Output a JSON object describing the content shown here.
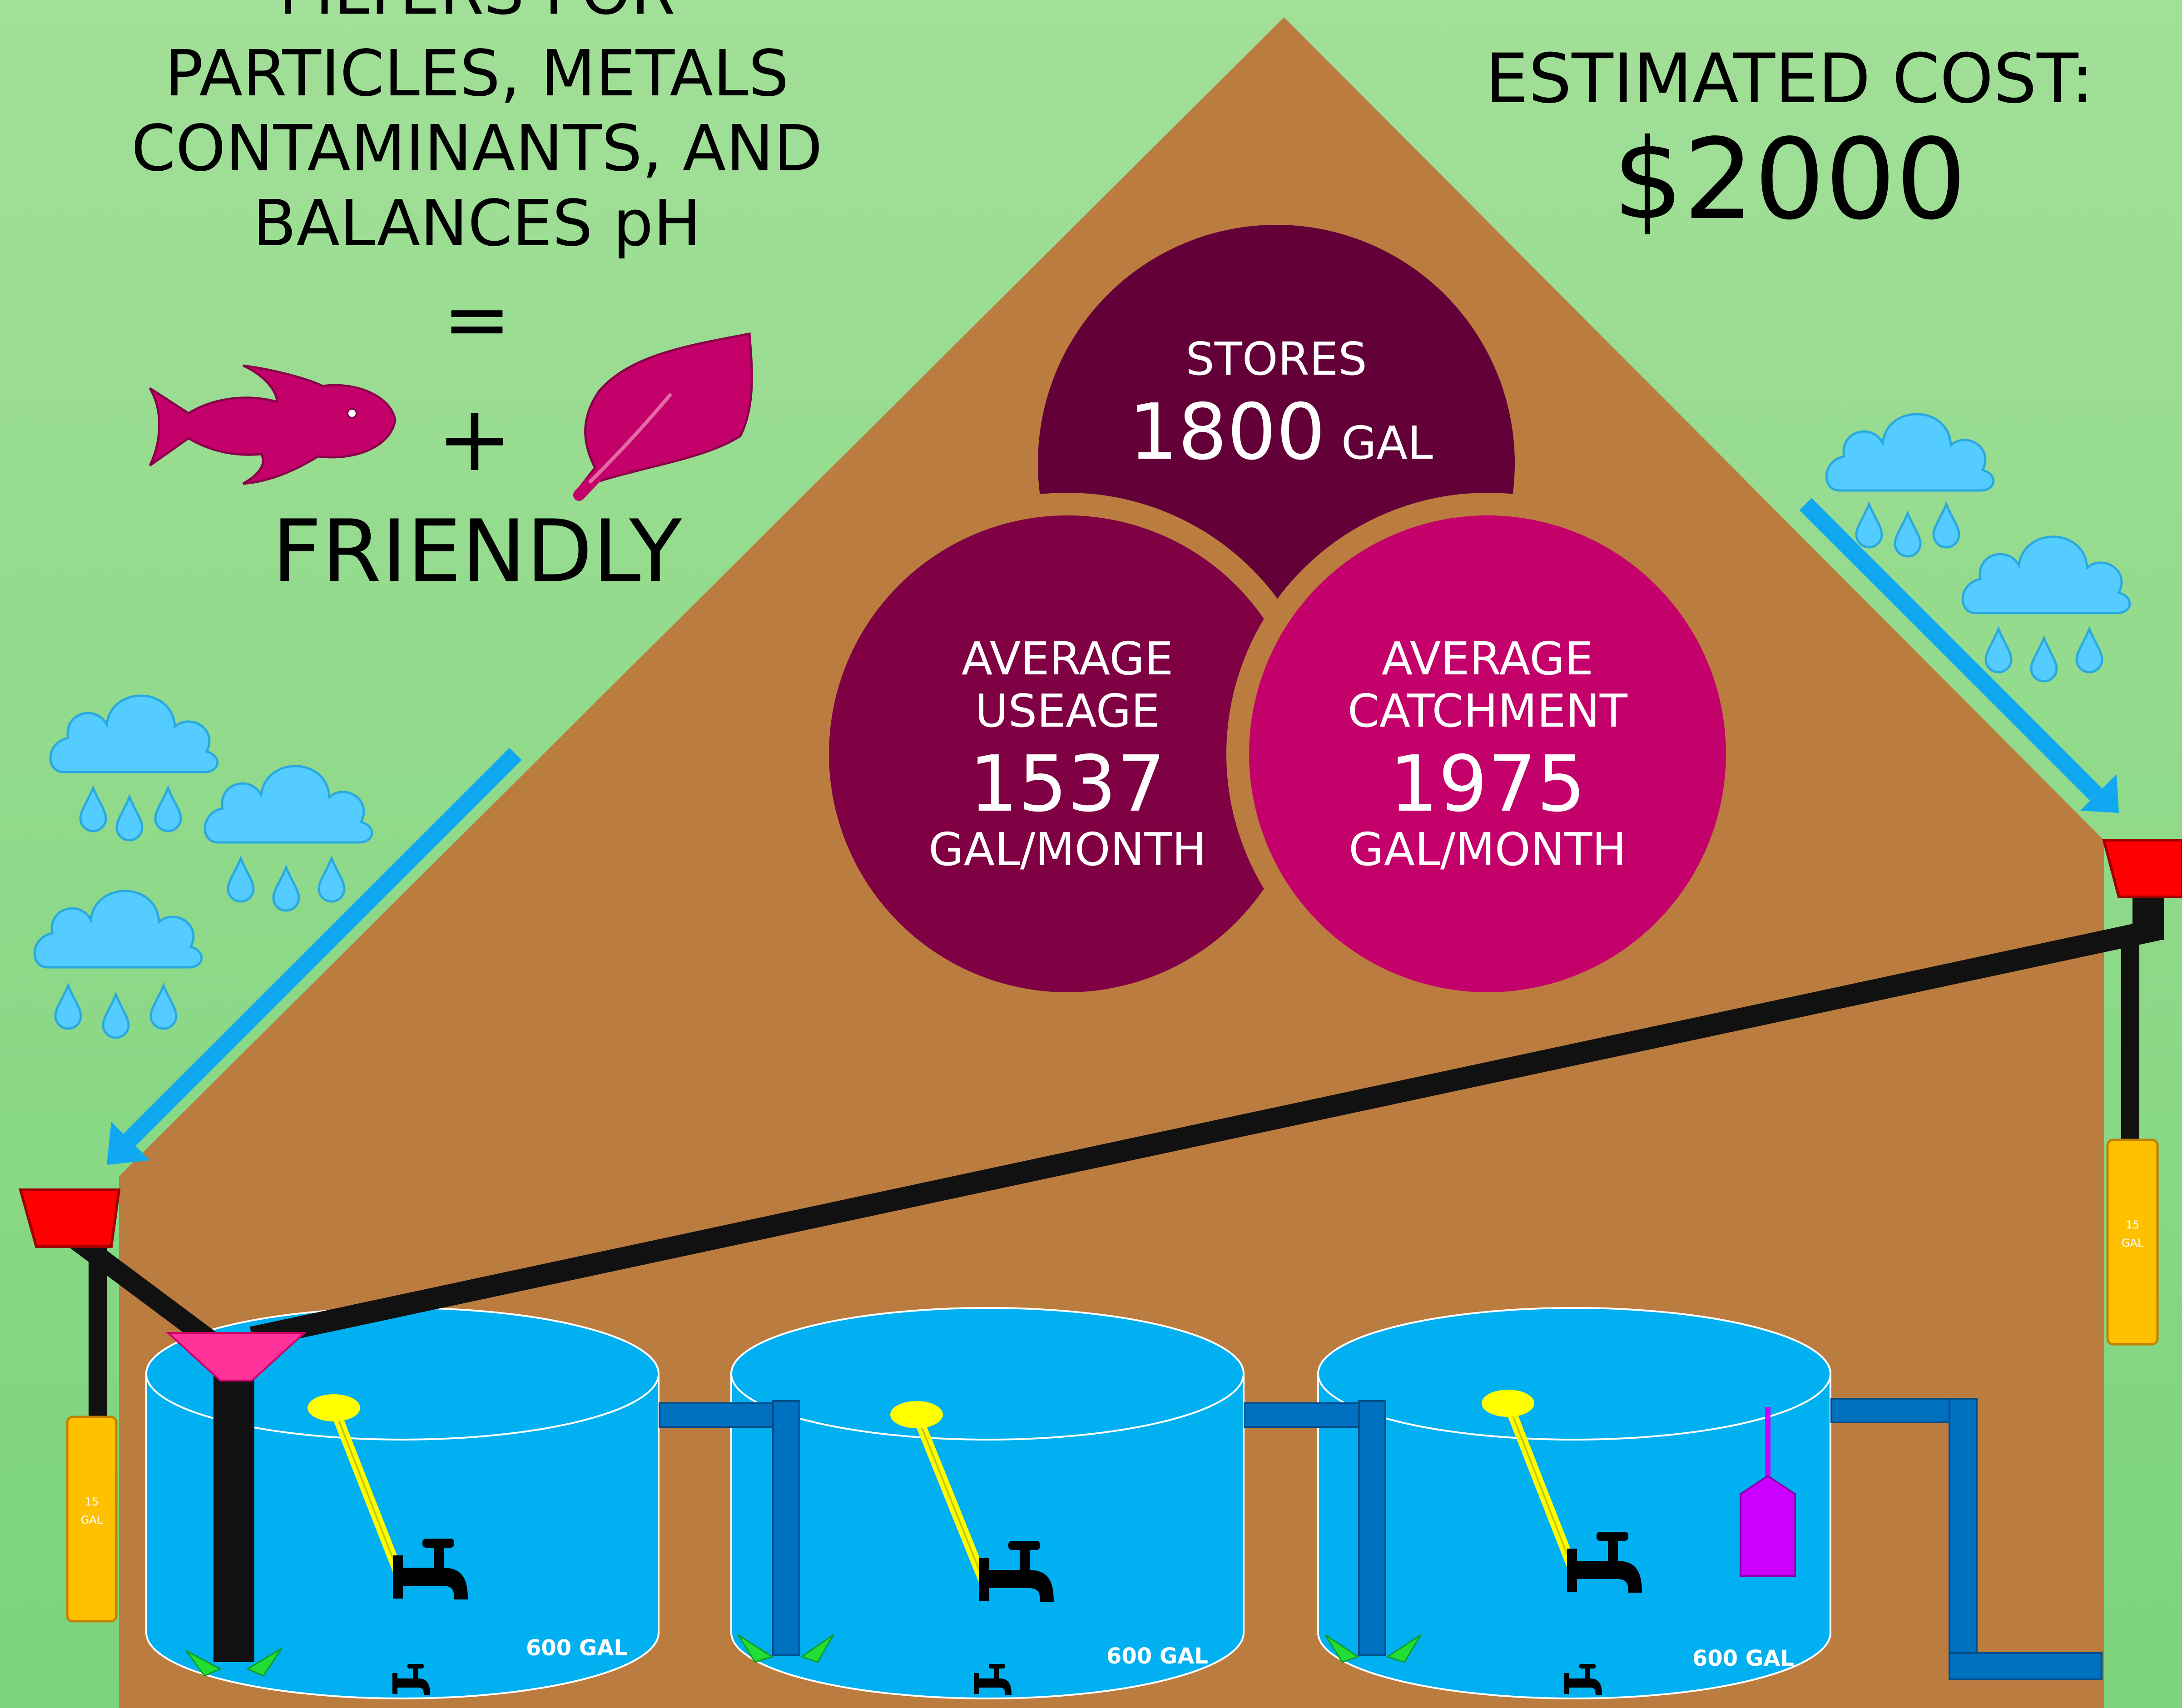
{
  "header_left": {
    "lines": [
      "FILTERS FOR",
      "PARTICLES, METALS",
      "CONTAMINANTS, AND",
      "BALANCES pH"
    ],
    "equals": "=",
    "plus": "+",
    "friendly": "FRIENDLY",
    "icons": [
      "fish-icon",
      "leaf-icon"
    ]
  },
  "header_right": {
    "label": "ESTIMATED COST:",
    "value": "$2000"
  },
  "circles": {
    "stores": {
      "label": "STORES",
      "value": "1800",
      "unit": "GAL"
    },
    "usage": {
      "line1": "AVERAGE",
      "line2": "USEAGE",
      "value": "1537",
      "unit": "GAL/MONTH"
    },
    "catchment": {
      "line1": "AVERAGE",
      "line2": "CATCHMENT",
      "value": "1975",
      "unit": "GAL/MONTH"
    }
  },
  "tanks": [
    {
      "label": "600 GAL"
    },
    {
      "label": "600 GAL"
    },
    {
      "label": "600 GAL"
    }
  ],
  "first_flush": [
    {
      "value": "15",
      "unit": "GAL"
    },
    {
      "value": "15",
      "unit": "GAL"
    }
  ],
  "colors": {
    "background": "#88d68a",
    "roof": "#bb7c40",
    "stores": "#630038",
    "usage": "#800044",
    "catchment": "#c4006b",
    "tank": "#00b0f0",
    "pipe_blue": "#0070c0",
    "gutter": "#ff0000",
    "flush": "#ffc000",
    "rain": "#55ccff",
    "icon": "#c4006b"
  }
}
